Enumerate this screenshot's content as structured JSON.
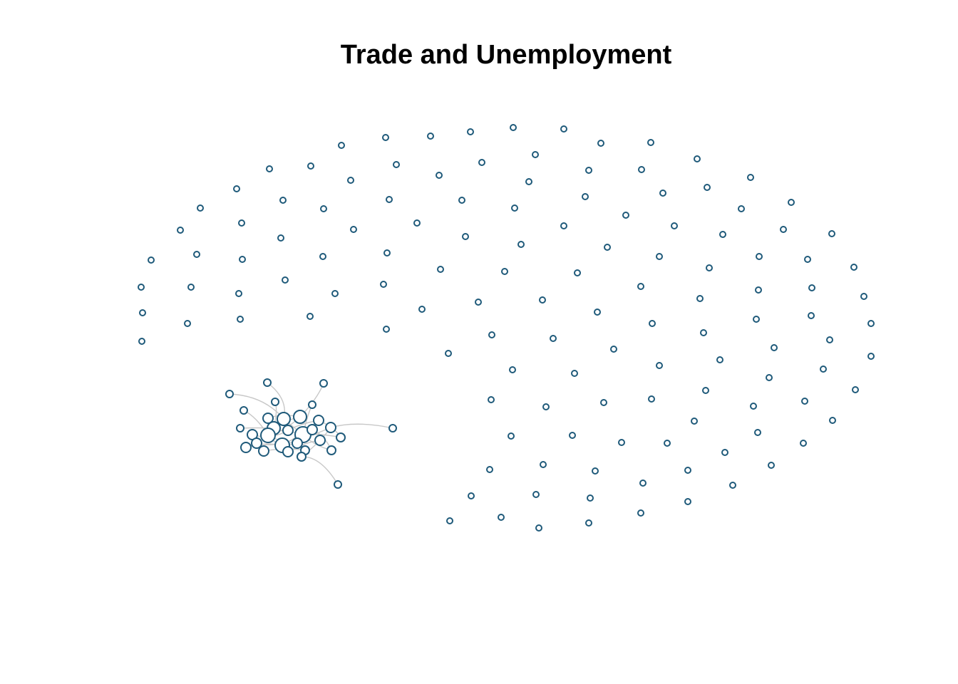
{
  "title": "Trade and Unemployment",
  "colors": {
    "node_stroke": "#1f5a7a",
    "node_fill": "#ffffff",
    "edge": "#c8c8c8",
    "background": "#ffffff"
  }
}
